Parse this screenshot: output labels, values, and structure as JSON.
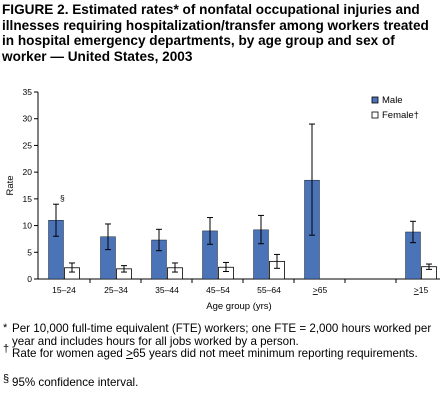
{
  "title": "FIGURE 2. Estimated rates* of nonfatal occupational injuries and illnesses requiring hospitalization/transfer among workers treated in hospital emergency departments, by age group and sex of worker — United States, 2003",
  "colors": {
    "male": "#4a73b8",
    "female": "#ffffff",
    "axis": "#000000"
  },
  "chart_data": {
    "type": "bar",
    "categories": [
      "15–24",
      "25–34",
      "35–44",
      "45–54",
      "55–64",
      "≥65",
      "≥15"
    ],
    "xlabel": "Age group (yrs)",
    "ylabel": "Rate",
    "ylim": [
      0,
      35
    ],
    "yticks": [
      0,
      5,
      10,
      15,
      20,
      25,
      30,
      35
    ],
    "grid": false,
    "legend_position": "top-right",
    "series": [
      {
        "name": "Male",
        "values": [
          11.0,
          7.9,
          7.3,
          9.0,
          9.2,
          18.5,
          8.8
        ],
        "error_low": [
          8.0,
          5.5,
          5.3,
          6.5,
          6.6,
          8.2,
          6.8
        ],
        "error_high": [
          14.0,
          10.3,
          9.3,
          11.5,
          11.9,
          29.0,
          10.8
        ]
      },
      {
        "name": "Female†",
        "values": [
          2.1,
          1.9,
          2.1,
          2.2,
          3.3,
          null,
          2.3
        ],
        "error_low": [
          1.3,
          1.3,
          1.3,
          1.4,
          2.0,
          null,
          1.8
        ],
        "error_high": [
          3.0,
          2.5,
          3.0,
          3.1,
          4.6,
          null,
          2.8
        ]
      }
    ],
    "annotations": [
      {
        "text": "§",
        "category": "15–24",
        "series": "Male"
      }
    ]
  },
  "footnotes": [
    {
      "mark": "*",
      "text": "Per 10,000 full-time equivalent (FTE) workers; one FTE = 2,000 hours worked per year and includes hours for all jobs worked by a person."
    },
    {
      "mark": "†",
      "text_before": "Rate for women aged ",
      "text_underlined": ">",
      "text_after": "65 years did not meet minimum reporting requirements."
    },
    {
      "mark": "§",
      "text": "95% confidence interval."
    }
  ]
}
